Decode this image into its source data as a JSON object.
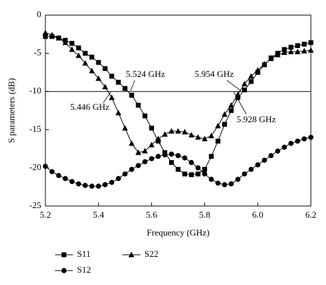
{
  "chart_data": {
    "type": "line",
    "x_label": "Frequency (GHz)",
    "y_label": "S parameters (dB)",
    "x": [
      5.2,
      5.225,
      5.25,
      5.275,
      5.3,
      5.325,
      5.35,
      5.375,
      5.4,
      5.425,
      5.45,
      5.475,
      5.5,
      5.525,
      5.55,
      5.575,
      5.6,
      5.625,
      5.65,
      5.675,
      5.7,
      5.725,
      5.75,
      5.775,
      5.8,
      5.825,
      5.85,
      5.875,
      5.9,
      5.925,
      5.95,
      5.975,
      6.0,
      6.025,
      6.05,
      6.075,
      6.1,
      6.125,
      6.15,
      6.175,
      6.2
    ],
    "series": [
      {
        "name": "S11",
        "color": "#000000",
        "marker": "square",
        "values": [
          -2.8,
          -2.8,
          -3,
          -3.3,
          -3.7,
          -4.3,
          -5,
          -5.5,
          -6.2,
          -7,
          -8,
          -8.8,
          -9.6,
          -10.5,
          -11.8,
          -13.2,
          -14.8,
          -16.5,
          -18,
          -19.3,
          -20.2,
          -20.8,
          -20.9,
          -20.8,
          -20.2,
          -18.5,
          -16.5,
          -14.3,
          -12.5,
          -10.8,
          -9.8,
          -8.7,
          -7.5,
          -6.5,
          -5.6,
          -5,
          -4.5,
          -4.2,
          -4,
          -3.8,
          -3.6
        ]
      },
      {
        "name": "S22",
        "color": "#000000",
        "marker": "triangle",
        "values": [
          -2.3,
          -2.6,
          -3,
          -3.6,
          -4.5,
          -5.3,
          -6.3,
          -7.3,
          -8.3,
          -9.4,
          -10.8,
          -12.8,
          -14.8,
          -16.8,
          -18,
          -17.8,
          -17,
          -16.2,
          -15.6,
          -15.2,
          -15.2,
          -15.3,
          -15.7,
          -16,
          -16.2,
          -15.8,
          -14.5,
          -13,
          -11.8,
          -10.4,
          -9,
          -8,
          -7.2,
          -6.4,
          -5.7,
          -5.2,
          -4.9,
          -4.8,
          -4.8,
          -4.7,
          -4.6
        ]
      },
      {
        "name": "S12",
        "color": "#000000",
        "marker": "circle",
        "values": [
          -19.8,
          -20.5,
          -21,
          -21.4,
          -21.8,
          -22.1,
          -22.3,
          -22.4,
          -22.4,
          -22.2,
          -21.9,
          -21.4,
          -20.8,
          -20.2,
          -19.7,
          -19.2,
          -18.8,
          -18.5,
          -18.3,
          -18.2,
          -18.4,
          -18.7,
          -19.3,
          -20,
          -20.8,
          -21.5,
          -22,
          -22.2,
          -22.1,
          -21.5,
          -20.8,
          -20.2,
          -19.6,
          -19,
          -18.4,
          -17.8,
          -17.3,
          -16.8,
          -16.5,
          -16.2,
          -16
        ]
      }
    ],
    "xlim": [
      5.2,
      6.2
    ],
    "xticks": [
      5.2,
      5.4,
      5.6,
      5.8,
      {
        "value": 6,
        "label": "6.0"
      },
      6.2
    ],
    "ylim": [
      -25,
      0
    ],
    "yticks": [
      -25,
      -20,
      -15,
      -10,
      -5,
      0
    ],
    "reference_line": -10,
    "annotations": [
      "5.524 GHz",
      "5.954 GHz",
      "5.446 GHz",
      "5.928 GHz"
    ],
    "legend": "below",
    "grid": false
  }
}
